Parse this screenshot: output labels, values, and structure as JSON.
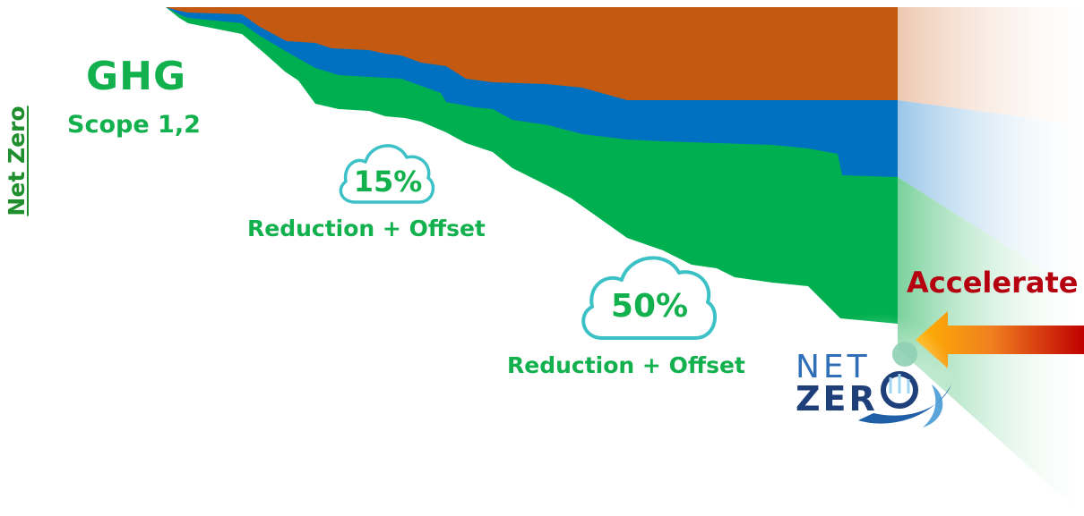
{
  "side_title": "Net Zero",
  "heading": {
    "title": "GHG",
    "subtitle": "Scope 1,2"
  },
  "milestones": [
    {
      "percent": "15%",
      "label": "Reduction + Offset"
    },
    {
      "percent": "50%",
      "label": "Reduction + Offset"
    }
  ],
  "accelerate_label": "Accelerate",
  "logo": {
    "line1": "NET",
    "line2": "ZER"
  },
  "colors": {
    "orange": "#c45a11",
    "blue": "#0070c0",
    "green": "#00b050",
    "cloud": "#3cc1c7",
    "title_green": "#1f8f2e",
    "accelerate_red": "#b5000f"
  }
}
